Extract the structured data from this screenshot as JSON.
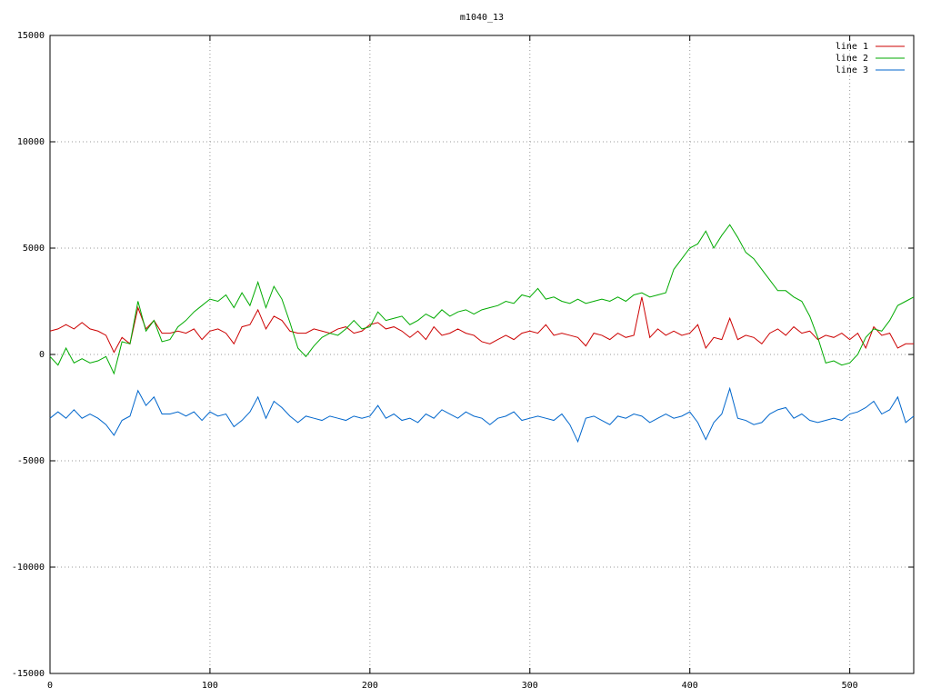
{
  "chart_data": {
    "type": "line",
    "title": "m1040_13",
    "x": [
      0,
      5,
      10,
      15,
      20,
      25,
      30,
      35,
      40,
      45,
      50,
      55,
      60,
      65,
      70,
      75,
      80,
      85,
      90,
      95,
      100,
      105,
      110,
      115,
      120,
      125,
      130,
      135,
      140,
      145,
      150,
      155,
      160,
      165,
      170,
      175,
      180,
      185,
      190,
      195,
      200,
      205,
      210,
      215,
      220,
      225,
      230,
      235,
      240,
      245,
      250,
      255,
      260,
      265,
      270,
      275,
      280,
      285,
      290,
      295,
      300,
      305,
      310,
      315,
      320,
      325,
      330,
      335,
      340,
      345,
      350,
      355,
      360,
      365,
      370,
      375,
      380,
      385,
      390,
      395,
      400,
      405,
      410,
      415,
      420,
      425,
      430,
      435,
      440,
      445,
      450,
      455,
      460,
      465,
      470,
      475,
      480,
      485,
      490,
      495,
      500,
      505,
      510,
      515,
      520,
      525,
      530,
      535,
      540
    ],
    "series": [
      {
        "name": "line 1",
        "color": "#cc0000",
        "values": [
          1100,
          1200,
          1400,
          1200,
          1500,
          1200,
          1100,
          900,
          100,
          800,
          500,
          2200,
          1200,
          1600,
          1000,
          1000,
          1100,
          1000,
          1200,
          700,
          1100,
          1200,
          1000,
          500,
          1300,
          1400,
          2100,
          1200,
          1800,
          1600,
          1100,
          1000,
          1000,
          1200,
          1100,
          1000,
          1200,
          1300,
          1000,
          1100,
          1400,
          1500,
          1200,
          1300,
          1100,
          800,
          1100,
          700,
          1300,
          900,
          1000,
          1200,
          1000,
          900,
          600,
          500,
          700,
          900,
          700,
          1000,
          1100,
          1000,
          1400,
          900,
          1000,
          900,
          800,
          400,
          1000,
          900,
          700,
          1000,
          800,
          900,
          2700,
          800,
          1200,
          900,
          1100,
          900,
          1000,
          1400,
          300,
          800,
          700,
          1700,
          700,
          900,
          800,
          500,
          1000,
          1200,
          900,
          1300,
          1000,
          1100,
          700,
          900,
          800,
          1000,
          700,
          1000,
          300,
          1300,
          900,
          1000,
          300,
          500,
          500
        ]
      },
      {
        "name": "line 2",
        "color": "#00aa00",
        "values": [
          -100,
          -500,
          300,
          -400,
          -200,
          -400,
          -300,
          -100,
          -900,
          600,
          500,
          2500,
          1100,
          1600,
          600,
          700,
          1300,
          1600,
          2000,
          2300,
          2600,
          2500,
          2800,
          2200,
          2900,
          2300,
          3400,
          2200,
          3200,
          2600,
          1500,
          300,
          -100,
          400,
          800,
          1000,
          900,
          1200,
          1600,
          1200,
          1300,
          2000,
          1600,
          1700,
          1800,
          1400,
          1600,
          1900,
          1700,
          2100,
          1800,
          2000,
          2100,
          1900,
          2100,
          2200,
          2300,
          2500,
          2400,
          2800,
          2700,
          3100,
          2600,
          2700,
          2500,
          2400,
          2600,
          2400,
          2500,
          2600,
          2500,
          2700,
          2500,
          2800,
          2900,
          2700,
          2800,
          2900,
          4000,
          4500,
          5000,
          5200,
          5800,
          5000,
          5600,
          6100,
          5500,
          4800,
          4500,
          4000,
          3500,
          3000,
          3000,
          2700,
          2500,
          1800,
          800,
          -400,
          -300,
          -500,
          -400,
          0,
          800,
          1200,
          1100,
          1600,
          2300,
          2500,
          2700
        ]
      },
      {
        "name": "line 3",
        "color": "#0066cc",
        "values": [
          -3000,
          -2700,
          -3000,
          -2600,
          -3000,
          -2800,
          -3000,
          -3300,
          -3800,
          -3100,
          -2900,
          -1700,
          -2400,
          -2000,
          -2800,
          -2800,
          -2700,
          -2900,
          -2700,
          -3100,
          -2700,
          -2900,
          -2800,
          -3400,
          -3100,
          -2700,
          -2000,
          -3000,
          -2200,
          -2500,
          -2900,
          -3200,
          -2900,
          -3000,
          -3100,
          -2900,
          -3000,
          -3100,
          -2900,
          -3000,
          -2900,
          -2400,
          -3000,
          -2800,
          -3100,
          -3000,
          -3200,
          -2800,
          -3000,
          -2600,
          -2800,
          -3000,
          -2700,
          -2900,
          -3000,
          -3300,
          -3000,
          -2900,
          -2700,
          -3100,
          -3000,
          -2900,
          -3000,
          -3100,
          -2800,
          -3300,
          -4100,
          -3000,
          -2900,
          -3100,
          -3300,
          -2900,
          -3000,
          -2800,
          -2900,
          -3200,
          -3000,
          -2800,
          -3000,
          -2900,
          -2700,
          -3200,
          -4000,
          -3200,
          -2800,
          -1600,
          -3000,
          -3100,
          -3300,
          -3200,
          -2800,
          -2600,
          -2500,
          -3000,
          -2800,
          -3100,
          -3200,
          -3100,
          -3000,
          -3100,
          -2800,
          -2700,
          -2500,
          -2200,
          -2800,
          -2600,
          -2000,
          -3200,
          -2900
        ]
      }
    ],
    "xlim": [
      0,
      540
    ],
    "xticks": [
      0,
      100,
      200,
      300,
      400,
      500
    ],
    "ylim": [
      -15000,
      15000
    ],
    "yticks": [
      -15000,
      -10000,
      -5000,
      0,
      5000,
      10000,
      15000
    ],
    "grid": true,
    "legend": "upper right"
  }
}
